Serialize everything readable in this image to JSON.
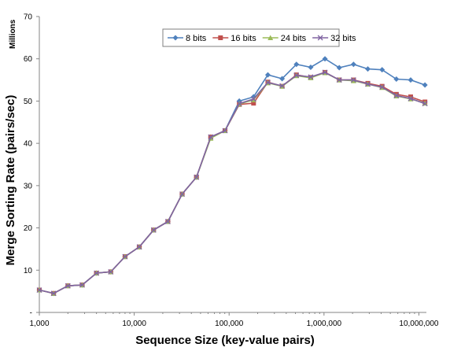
{
  "chart_data": {
    "type": "line",
    "xlabel": "Sequence Size (key-value pairs)",
    "ylabel": "Merge Sorting Rate (pairs/sec)",
    "yunit_label": "Millions",
    "xscale": "log",
    "xlim": [
      1000,
      12000000
    ],
    "ylim": [
      0,
      70
    ],
    "yticks": [
      0,
      10,
      20,
      30,
      40,
      50,
      60,
      70
    ],
    "ytick_labels": [
      "-",
      "10",
      "20",
      "30",
      "40",
      "50",
      "60",
      "70"
    ],
    "xticks": [
      1000,
      10000,
      100000,
      1000000,
      10000000
    ],
    "xtick_labels": [
      "1,000",
      "10,000",
      "100,000",
      "1,000,000",
      "10,000,000"
    ],
    "legend_position": "top-center",
    "grid": false,
    "x": [
      1000,
      1414,
      2000,
      2828,
      4000,
      5657,
      8000,
      11314,
      16000,
      22627,
      32000,
      45255,
      64000,
      90510,
      128000,
      181019,
      256000,
      362039,
      512000,
      724077,
      1024000,
      1448155,
      2048000,
      2896309,
      4096000,
      5792619,
      8192000,
      11585237
    ],
    "series": [
      {
        "name": "8 bits",
        "color": "#4f81bd",
        "marker": "diamond",
        "values": [
          5.3,
          4.5,
          6.3,
          6.5,
          9.3,
          9.6,
          13.2,
          15.5,
          19.5,
          21.5,
          28.0,
          32.0,
          41.5,
          43.0,
          50.0,
          51.0,
          56.2,
          55.3,
          58.7,
          58.0,
          60.0,
          57.9,
          58.7,
          57.6,
          57.4,
          55.2,
          55.0,
          53.8
        ]
      },
      {
        "name": "16 bits",
        "color": "#c0504d",
        "marker": "square",
        "values": [
          5.3,
          4.5,
          6.3,
          6.5,
          9.3,
          9.6,
          13.2,
          15.5,
          19.5,
          21.5,
          28.0,
          32.0,
          41.5,
          43.0,
          49.2,
          49.5,
          54.5,
          53.5,
          56.2,
          55.6,
          56.8,
          55.0,
          55.0,
          54.2,
          53.5,
          51.6,
          51.0,
          49.8
        ]
      },
      {
        "name": "24 bits",
        "color": "#9bbb59",
        "marker": "triangle",
        "values": [
          5.3,
          4.5,
          6.3,
          6.5,
          9.3,
          9.6,
          13.2,
          15.5,
          19.5,
          21.5,
          28.0,
          32.0,
          41.2,
          43.0,
          49.3,
          50.3,
          54.3,
          53.5,
          56.0,
          55.5,
          56.7,
          55.0,
          54.8,
          54.0,
          53.2,
          51.2,
          50.5,
          49.5
        ]
      },
      {
        "name": "32 bits",
        "color": "#8064a2",
        "marker": "x",
        "values": [
          5.3,
          4.5,
          6.3,
          6.5,
          9.3,
          9.6,
          13.2,
          15.5,
          19.5,
          21.5,
          28.0,
          32.0,
          41.5,
          43.0,
          49.4,
          50.5,
          54.4,
          53.6,
          56.1,
          55.7,
          56.8,
          55.0,
          55.0,
          54.0,
          53.3,
          51.3,
          50.6,
          49.4
        ]
      }
    ]
  }
}
